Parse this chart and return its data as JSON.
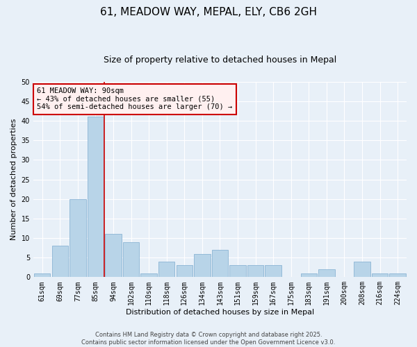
{
  "title": "61, MEADOW WAY, MEPAL, ELY, CB6 2GH",
  "subtitle": "Size of property relative to detached houses in Mepal",
  "xlabel": "Distribution of detached houses by size in Mepal",
  "ylabel": "Number of detached properties",
  "bar_labels": [
    "61sqm",
    "69sqm",
    "77sqm",
    "85sqm",
    "94sqm",
    "102sqm",
    "110sqm",
    "118sqm",
    "126sqm",
    "134sqm",
    "143sqm",
    "151sqm",
    "159sqm",
    "167sqm",
    "175sqm",
    "183sqm",
    "191sqm",
    "200sqm",
    "208sqm",
    "216sqm",
    "224sqm"
  ],
  "bar_values": [
    1,
    8,
    20,
    41,
    11,
    9,
    1,
    4,
    3,
    6,
    7,
    3,
    3,
    3,
    0,
    1,
    2,
    0,
    4,
    1,
    1
  ],
  "bar_color": "#b8d4e8",
  "bar_edge_color": "#8ab4d4",
  "background_color": "#e8f0f8",
  "grid_color": "#ffffff",
  "ylim": [
    0,
    50
  ],
  "yticks": [
    0,
    5,
    10,
    15,
    20,
    25,
    30,
    35,
    40,
    45,
    50
  ],
  "annotation_box_text": "61 MEADOW WAY: 90sqm\n← 43% of detached houses are smaller (55)\n54% of semi-detached houses are larger (70) →",
  "vline_x_index": 4,
  "vline_color": "#cc0000",
  "annotation_box_facecolor": "#fff0f0",
  "annotation_box_edge_color": "#cc0000",
  "footer_text": "Contains HM Land Registry data © Crown copyright and database right 2025.\nContains public sector information licensed under the Open Government Licence v3.0.",
  "title_fontsize": 11,
  "subtitle_fontsize": 9,
  "axis_label_fontsize": 8,
  "tick_fontsize": 7,
  "annotation_fontsize": 7.5,
  "footer_fontsize": 6
}
